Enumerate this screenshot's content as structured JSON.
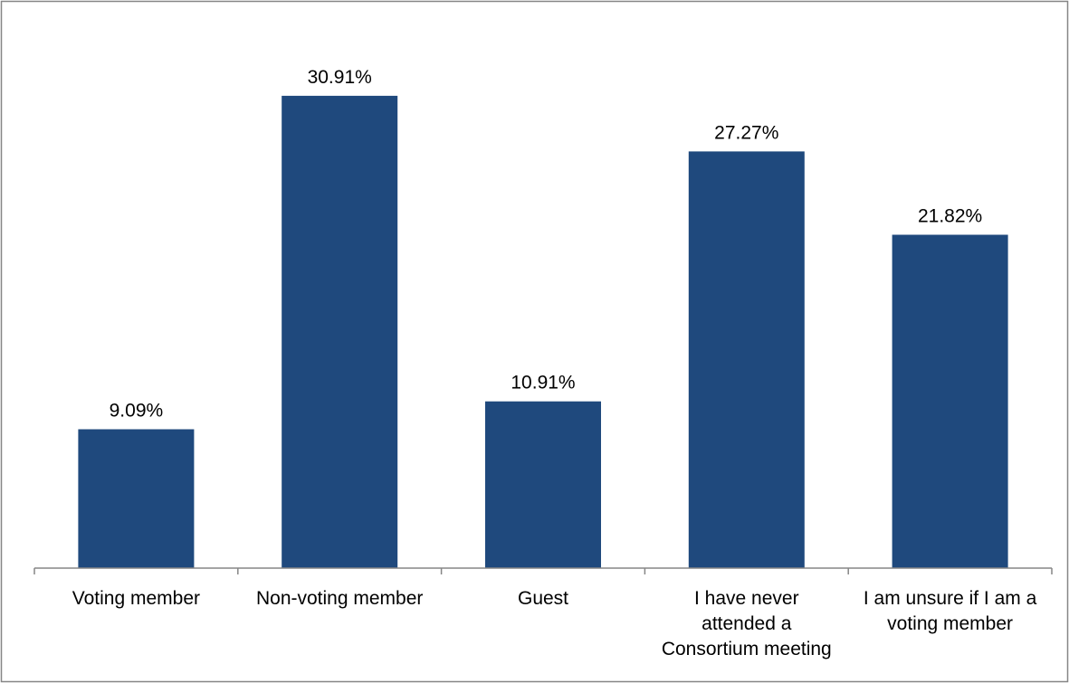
{
  "chart_data": {
    "type": "bar",
    "title": "",
    "xlabel": "",
    "ylabel": "",
    "categories": [
      "Voting member",
      "Non-voting member",
      "Guest",
      "I have never attended a Consortium meeting",
      "I am unsure if I am a voting member"
    ],
    "category_lines": [
      [
        "Voting member"
      ],
      [
        "Non-voting member"
      ],
      [
        "Guest"
      ],
      [
        "I have never",
        "attended a",
        "Consortium meeting"
      ],
      [
        "I am unsure if I am a",
        "voting member"
      ]
    ],
    "values": [
      9.09,
      30.91,
      10.91,
      27.27,
      21.82
    ],
    "value_labels": [
      "9.09%",
      "30.91%",
      "10.91%",
      "27.27%",
      "21.82%"
    ],
    "ylim": [
      0,
      35
    ],
    "grid": false,
    "legend": "none",
    "bar_color": "#1F497D",
    "axis_color": "#868686",
    "border_color": "#868686"
  }
}
